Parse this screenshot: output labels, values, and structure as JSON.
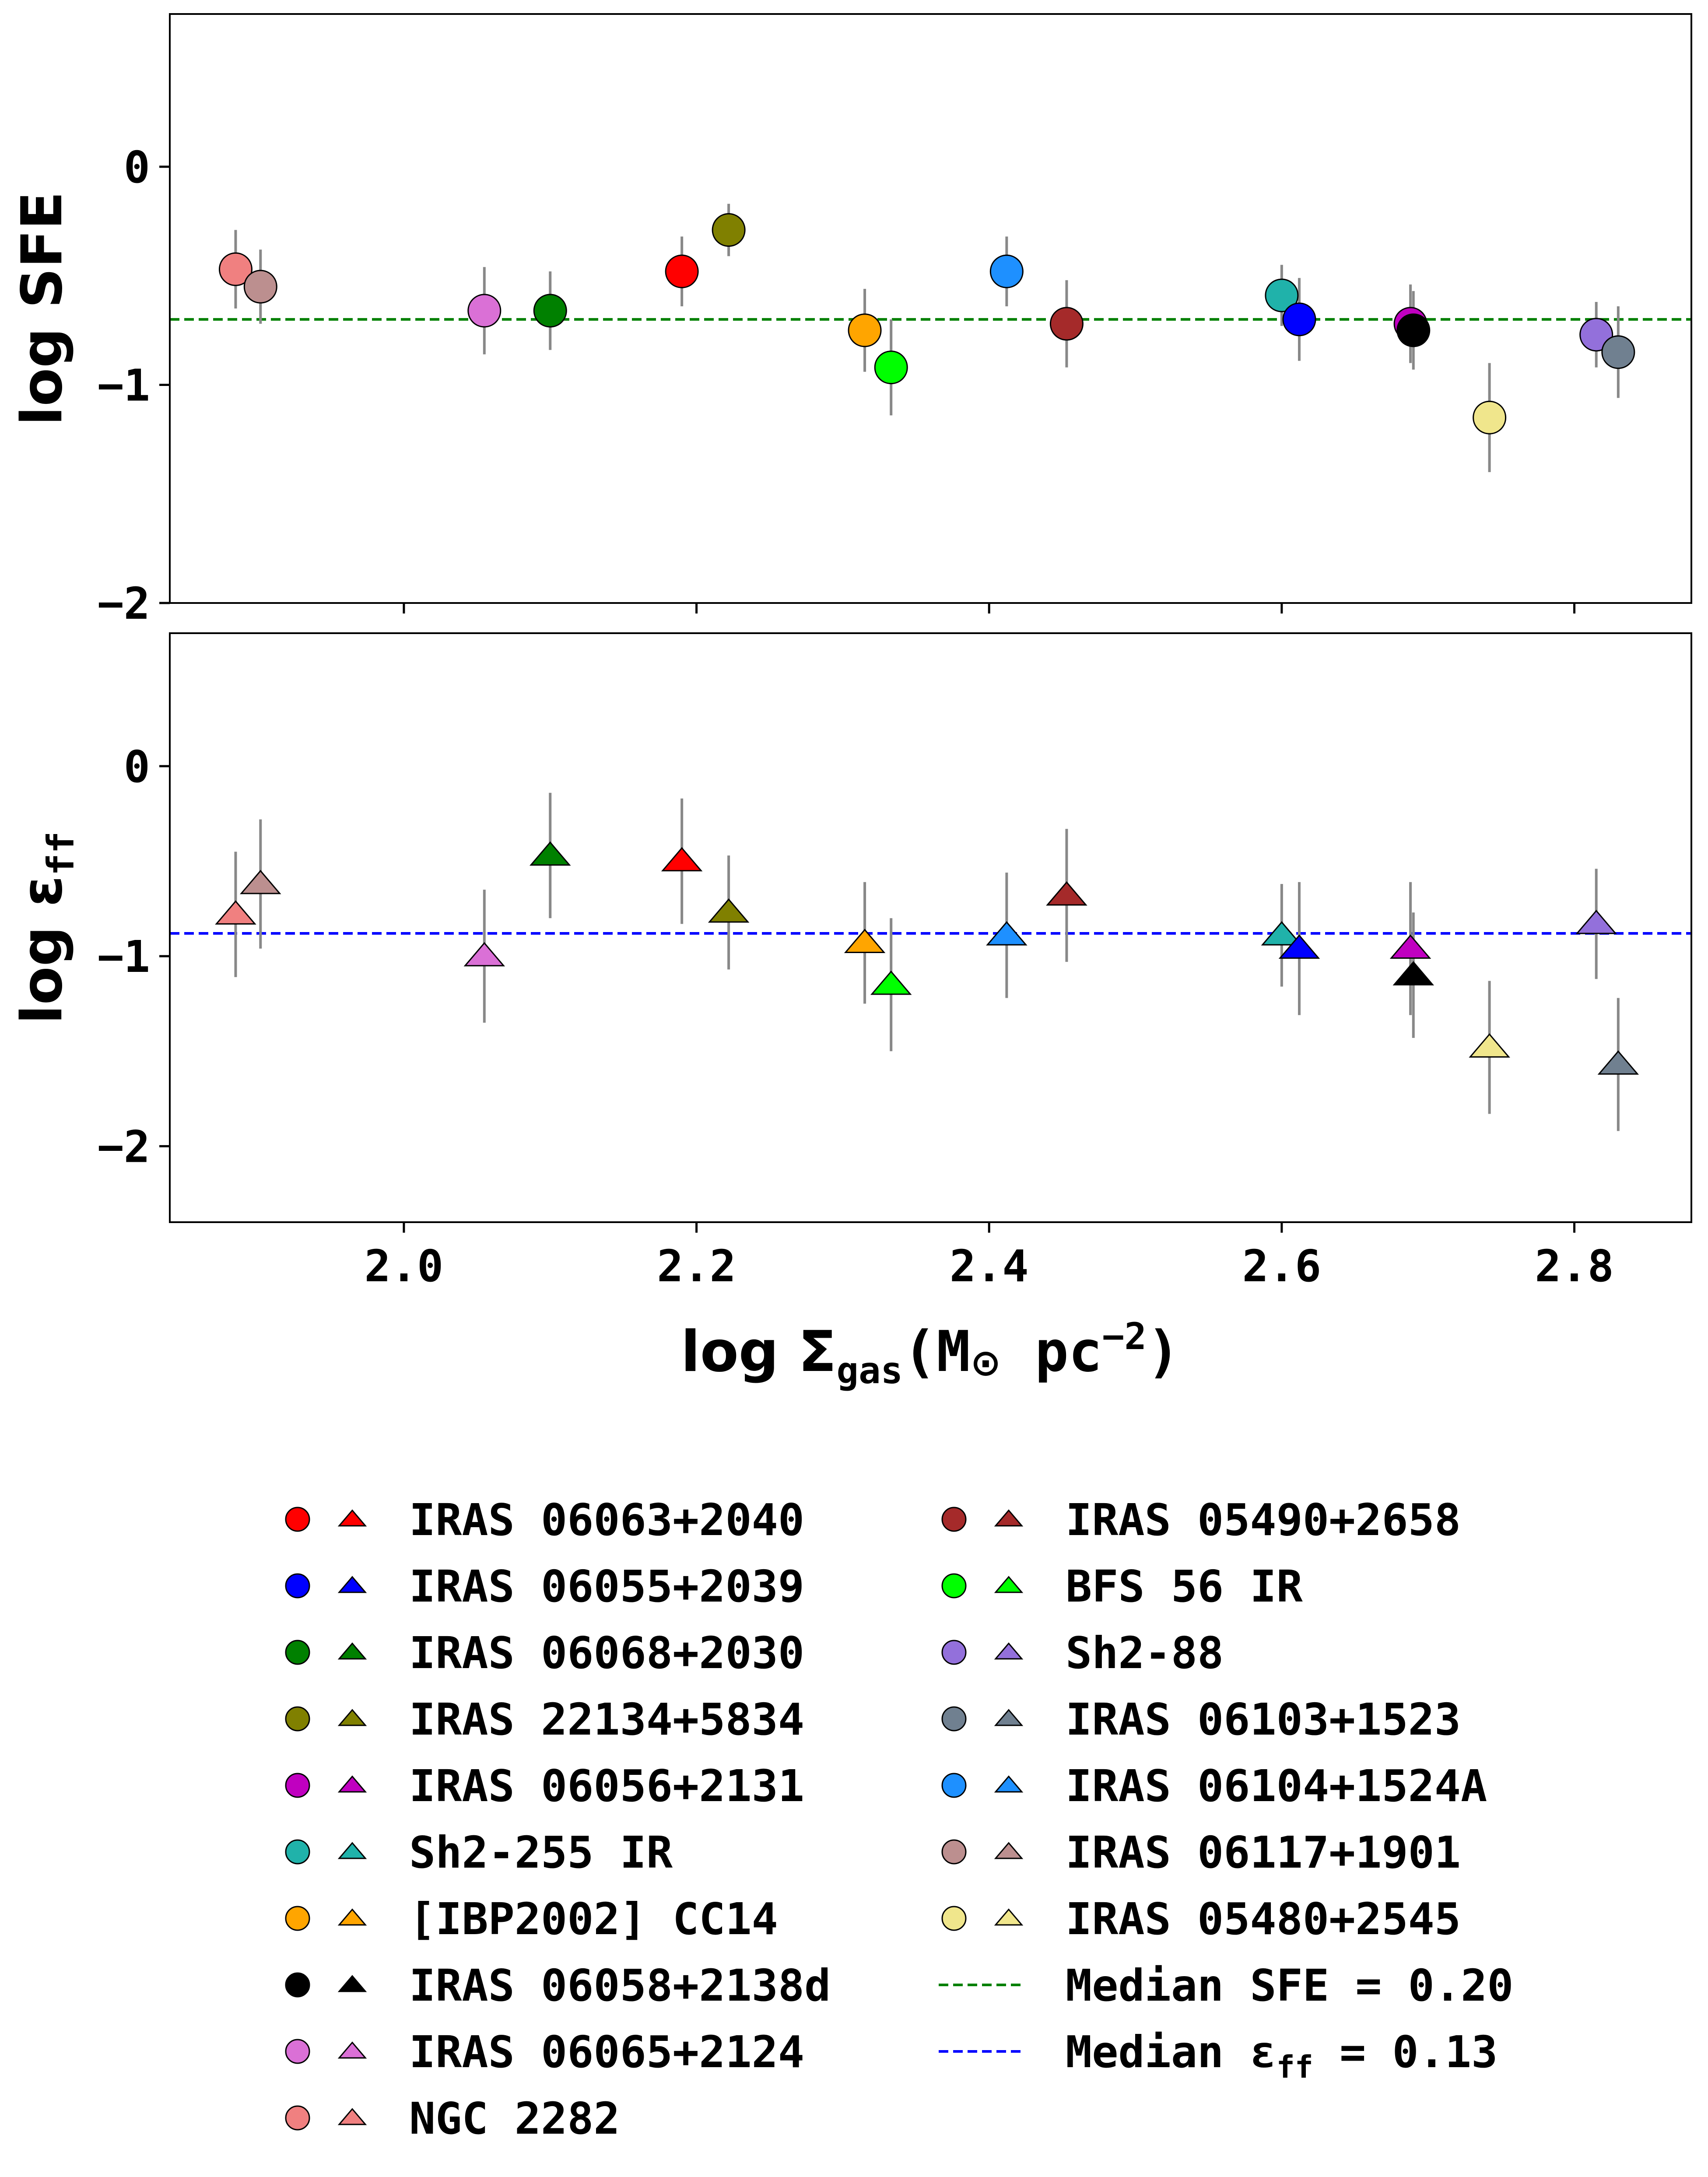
{
  "chart_data": [
    {
      "type": "scatter",
      "panel": "top",
      "ylabel": "log SFE",
      "xlim": [
        1.84,
        2.88
      ],
      "ylim": [
        -2,
        0.7
      ],
      "yticks": [
        0,
        -1,
        -2
      ],
      "yticklabels": [
        "0",
        "−1",
        "−2"
      ],
      "xticks": [
        2.0,
        2.2,
        2.4,
        2.6,
        2.8
      ],
      "show_xticklabels": false,
      "marker": "circle",
      "median_line": {
        "value": -0.7,
        "color": "#008000",
        "label": "Median SFE = 0.20"
      },
      "series": [
        {
          "name": "NGC 2282",
          "color": "#f08080",
          "x": 1.885,
          "y": -0.47,
          "yerr": 0.18
        },
        {
          "name": "IRAS 06117+1901",
          "color": "#bc8f8f",
          "x": 1.902,
          "y": -0.55,
          "yerr": 0.17
        },
        {
          "name": "IRAS 06065+2124",
          "color": "#da70d6",
          "x": 2.055,
          "y": -0.66,
          "yerr": 0.2
        },
        {
          "name": "IRAS 06068+2030",
          "color": "#008000",
          "x": 2.1,
          "y": -0.66,
          "yerr": 0.18
        },
        {
          "name": "IRAS 06063+2040",
          "color": "#ff0000",
          "x": 2.19,
          "y": -0.48,
          "yerr": 0.16
        },
        {
          "name": "IRAS 22134+5834",
          "color": "#808000",
          "x": 2.222,
          "y": -0.29,
          "yerr": 0.12
        },
        {
          "name": "[IBP2002] CC14",
          "color": "#ffa500",
          "x": 2.315,
          "y": -0.75,
          "yerr": 0.19
        },
        {
          "name": "BFS 56 IR",
          "color": "#00ff00",
          "x": 2.333,
          "y": -0.92,
          "yerr": 0.22
        },
        {
          "name": "IRAS 06104+1524A",
          "color": "#1e90ff",
          "x": 2.412,
          "y": -0.48,
          "yerr": 0.16
        },
        {
          "name": "IRAS 05490+2658",
          "color": "#a52a2a",
          "x": 2.453,
          "y": -0.72,
          "yerr": 0.2
        },
        {
          "name": "Sh2-255 IR",
          "color": "#20b2aa",
          "x": 2.6,
          "y": -0.59,
          "yerr": 0.14
        },
        {
          "name": "IRAS 06055+2039",
          "color": "#0000ff",
          "x": 2.612,
          "y": -0.7,
          "yerr": 0.19
        },
        {
          "name": "IRAS 06056+2131",
          "color": "#c000c0",
          "x": 2.688,
          "y": -0.72,
          "yerr": 0.18
        },
        {
          "name": "IRAS 06058+2138d",
          "color": "#000000",
          "x": 2.69,
          "y": -0.75,
          "yerr": 0.18
        },
        {
          "name": "IRAS 05480+2545",
          "color": "#f0e68c",
          "x": 2.742,
          "y": -1.15,
          "yerr": 0.25
        },
        {
          "name": "Sh2-88",
          "color": "#9370db",
          "x": 2.815,
          "y": -0.77,
          "yerr": 0.15
        },
        {
          "name": "IRAS 06103+1523",
          "color": "#708090",
          "x": 2.83,
          "y": -0.85,
          "yerr": 0.21
        }
      ]
    },
    {
      "type": "scatter",
      "panel": "bottom",
      "ylabel": "log ε",
      "ylabel_sub": "ff",
      "xlabel": "log Σ",
      "xlabel_sub": "gas",
      "xlabel_unit": "(M",
      "xlabel_unit_sym": "⊙",
      "xlabel_unit_rest": " pc",
      "xlabel_unit_exp": "−2",
      "xlabel_close": ")",
      "xlim": [
        1.84,
        2.88
      ],
      "ylim": [
        -2.4,
        0.7
      ],
      "yticks": [
        0,
        -1,
        -2
      ],
      "yticklabels": [
        "0",
        "−1",
        "−2"
      ],
      "xticks": [
        2.0,
        2.2,
        2.4,
        2.6,
        2.8
      ],
      "xticklabels": [
        "2.0",
        "2.2",
        "2.4",
        "2.6",
        "2.8"
      ],
      "marker": "triangle",
      "median_line": {
        "value": -0.88,
        "color": "#0000ff",
        "label_prefix": "Median ε",
        "label_sub": "ff",
        "label_suffix": " = 0.13"
      },
      "series": [
        {
          "name": "NGC 2282",
          "color": "#f08080",
          "x": 1.885,
          "y": -0.78,
          "yerr": 0.33
        },
        {
          "name": "IRAS 06117+1901",
          "color": "#bc8f8f",
          "x": 1.902,
          "y": -0.62,
          "yerr": 0.34
        },
        {
          "name": "IRAS 06065+2124",
          "color": "#da70d6",
          "x": 2.055,
          "y": -1.0,
          "yerr": 0.35
        },
        {
          "name": "IRAS 06068+2030",
          "color": "#008000",
          "x": 2.1,
          "y": -0.47,
          "yerr": 0.33
        },
        {
          "name": "IRAS 06063+2040",
          "color": "#ff0000",
          "x": 2.19,
          "y": -0.5,
          "yerr": 0.33
        },
        {
          "name": "IRAS 22134+5834",
          "color": "#808000",
          "x": 2.222,
          "y": -0.77,
          "yerr": 0.3
        },
        {
          "name": "[IBP2002] CC14",
          "color": "#ffa500",
          "x": 2.315,
          "y": -0.93,
          "yerr": 0.32
        },
        {
          "name": "BFS 56 IR",
          "color": "#00ff00",
          "x": 2.333,
          "y": -1.15,
          "yerr": 0.35
        },
        {
          "name": "IRAS 06104+1524A",
          "color": "#1e90ff",
          "x": 2.412,
          "y": -0.89,
          "yerr": 0.33
        },
        {
          "name": "IRAS 05490+2658",
          "color": "#a52a2a",
          "x": 2.453,
          "y": -0.68,
          "yerr": 0.35
        },
        {
          "name": "Sh2-255 IR",
          "color": "#20b2aa",
          "x": 2.6,
          "y": -0.89,
          "yerr": 0.27
        },
        {
          "name": "IRAS 06055+2039",
          "color": "#0000ff",
          "x": 2.612,
          "y": -0.96,
          "yerr": 0.35
        },
        {
          "name": "IRAS 06056+2131",
          "color": "#c000c0",
          "x": 2.688,
          "y": -0.96,
          "yerr": 0.35
        },
        {
          "name": "IRAS 06058+2138d",
          "color": "#000000",
          "x": 2.69,
          "y": -1.1,
          "yerr": 0.33
        },
        {
          "name": "IRAS 05480+2545",
          "color": "#f0e68c",
          "x": 2.742,
          "y": -1.48,
          "yerr": 0.35
        },
        {
          "name": "Sh2-88",
          "color": "#9370db",
          "x": 2.815,
          "y": -0.83,
          "yerr": 0.29
        },
        {
          "name": "IRAS 06103+1523",
          "color": "#708090",
          "x": 2.83,
          "y": -1.57,
          "yerr": 0.35
        }
      ]
    }
  ],
  "legend": {
    "placement": "bottom",
    "items": [
      {
        "label": "IRAS 06063+2040",
        "color": "#ff0000"
      },
      {
        "label": "IRAS 06055+2039",
        "color": "#0000ff"
      },
      {
        "label": "IRAS 06068+2030",
        "color": "#008000"
      },
      {
        "label": "IRAS 22134+5834",
        "color": "#808000"
      },
      {
        "label": "IRAS 06056+2131",
        "color": "#c000c0"
      },
      {
        "label": "Sh2-255 IR",
        "color": "#20b2aa"
      },
      {
        "label": "[IBP2002] CC14",
        "color": "#ffa500"
      },
      {
        "label": "IRAS 06058+2138d",
        "color": "#000000"
      },
      {
        "label": "IRAS 06065+2124",
        "color": "#da70d6"
      },
      {
        "label": "NGC 2282",
        "color": "#f08080"
      },
      {
        "label": "IRAS 05490+2658",
        "color": "#a52a2a"
      },
      {
        "label": "BFS 56 IR",
        "color": "#00ff00"
      },
      {
        "label": "Sh2-88",
        "color": "#9370db"
      },
      {
        "label": "IRAS 06103+1523",
        "color": "#708090"
      },
      {
        "label": "IRAS 06104+1524A",
        "color": "#1e90ff"
      },
      {
        "label": "IRAS 06117+1901",
        "color": "#bc8f8f"
      },
      {
        "label": "IRAS 05480+2545",
        "color": "#f0e68c"
      }
    ]
  }
}
